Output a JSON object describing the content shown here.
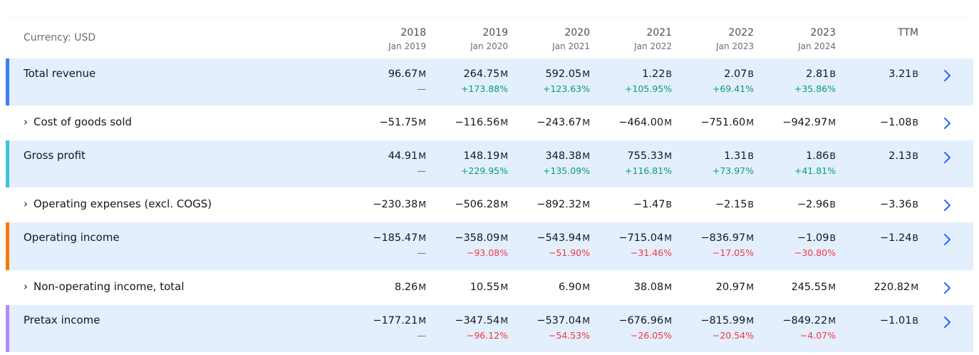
{
  "colors": {
    "band": "#e3effd",
    "positive": "#089981",
    "negative": "#f23645",
    "chevron": "#2962ff",
    "accent_total_revenue": "#3b82f6",
    "accent_gross_profit": "#40c4d8",
    "accent_operating_income": "#f57c00",
    "accent_pretax_income": "#b388ff"
  },
  "header": {
    "currency": "Currency: USD",
    "columns": [
      {
        "year": "2018",
        "period": "Jan 2019"
      },
      {
        "year": "2019",
        "period": "Jan 2020"
      },
      {
        "year": "2020",
        "period": "Jan 2021"
      },
      {
        "year": "2021",
        "period": "Jan 2022"
      },
      {
        "year": "2022",
        "period": "Jan 2023"
      },
      {
        "year": "2023",
        "period": "Jan 2024"
      },
      {
        "year": "TTM",
        "period": ""
      }
    ]
  },
  "rows": [
    {
      "label": "Total revenue",
      "expandable": false,
      "accent": "accent_total_revenue",
      "values": [
        {
          "num": "96.67",
          "unit": "M",
          "change": "—"
        },
        {
          "num": "264.75",
          "unit": "M",
          "change": "+173.88%"
        },
        {
          "num": "592.05",
          "unit": "M",
          "change": "+123.63%"
        },
        {
          "num": "1.22",
          "unit": "B",
          "change": "+105.95%"
        },
        {
          "num": "2.07",
          "unit": "B",
          "change": "+69.41%"
        },
        {
          "num": "2.81",
          "unit": "B",
          "change": "+35.86%"
        },
        {
          "num": "3.21",
          "unit": "B",
          "change": ""
        }
      ]
    },
    {
      "label": "Cost of goods sold",
      "expandable": true,
      "accent": "",
      "values": [
        {
          "num": "−51.75",
          "unit": "M",
          "change": ""
        },
        {
          "num": "−116.56",
          "unit": "M",
          "change": ""
        },
        {
          "num": "−243.67",
          "unit": "M",
          "change": ""
        },
        {
          "num": "−464.00",
          "unit": "M",
          "change": ""
        },
        {
          "num": "−751.60",
          "unit": "M",
          "change": ""
        },
        {
          "num": "−942.97",
          "unit": "M",
          "change": ""
        },
        {
          "num": "−1.08",
          "unit": "B",
          "change": ""
        }
      ]
    },
    {
      "label": "Gross profit",
      "expandable": false,
      "accent": "accent_gross_profit",
      "values": [
        {
          "num": "44.91",
          "unit": "M",
          "change": "—"
        },
        {
          "num": "148.19",
          "unit": "M",
          "change": "+229.95%"
        },
        {
          "num": "348.38",
          "unit": "M",
          "change": "+135.09%"
        },
        {
          "num": "755.33",
          "unit": "M",
          "change": "+116.81%"
        },
        {
          "num": "1.31",
          "unit": "B",
          "change": "+73.97%"
        },
        {
          "num": "1.86",
          "unit": "B",
          "change": "+41.81%"
        },
        {
          "num": "2.13",
          "unit": "B",
          "change": ""
        }
      ]
    },
    {
      "label": "Operating expenses (excl. COGS)",
      "expandable": true,
      "accent": "",
      "values": [
        {
          "num": "−230.38",
          "unit": "M",
          "change": ""
        },
        {
          "num": "−506.28",
          "unit": "M",
          "change": ""
        },
        {
          "num": "−892.32",
          "unit": "M",
          "change": ""
        },
        {
          "num": "−1.47",
          "unit": "B",
          "change": ""
        },
        {
          "num": "−2.15",
          "unit": "B",
          "change": ""
        },
        {
          "num": "−2.96",
          "unit": "B",
          "change": ""
        },
        {
          "num": "−3.36",
          "unit": "B",
          "change": ""
        }
      ]
    },
    {
      "label": "Operating income",
      "expandable": false,
      "accent": "accent_operating_income",
      "values": [
        {
          "num": "−185.47",
          "unit": "M",
          "change": "—"
        },
        {
          "num": "−358.09",
          "unit": "M",
          "change": "−93.08%"
        },
        {
          "num": "−543.94",
          "unit": "M",
          "change": "−51.90%"
        },
        {
          "num": "−715.04",
          "unit": "M",
          "change": "−31.46%"
        },
        {
          "num": "−836.97",
          "unit": "M",
          "change": "−17.05%"
        },
        {
          "num": "−1.09",
          "unit": "B",
          "change": "−30.80%"
        },
        {
          "num": "−1.24",
          "unit": "B",
          "change": ""
        }
      ]
    },
    {
      "label": "Non-operating income, total",
      "expandable": true,
      "accent": "",
      "values": [
        {
          "num": "8.26",
          "unit": "M",
          "change": ""
        },
        {
          "num": "10.55",
          "unit": "M",
          "change": ""
        },
        {
          "num": "6.90",
          "unit": "M",
          "change": ""
        },
        {
          "num": "38.08",
          "unit": "M",
          "change": ""
        },
        {
          "num": "20.97",
          "unit": "M",
          "change": ""
        },
        {
          "num": "245.55",
          "unit": "M",
          "change": ""
        },
        {
          "num": "220.82",
          "unit": "M",
          "change": ""
        }
      ]
    },
    {
      "label": "Pretax income",
      "expandable": false,
      "accent": "accent_pretax_income",
      "values": [
        {
          "num": "−177.21",
          "unit": "M",
          "change": "—"
        },
        {
          "num": "−347.54",
          "unit": "M",
          "change": "−96.12%"
        },
        {
          "num": "−537.04",
          "unit": "M",
          "change": "−54.53%"
        },
        {
          "num": "−676.96",
          "unit": "M",
          "change": "−26.05%"
        },
        {
          "num": "−815.99",
          "unit": "M",
          "change": "−20.54%"
        },
        {
          "num": "−849.22",
          "unit": "M",
          "change": "−4.07%"
        },
        {
          "num": "−1.01",
          "unit": "B",
          "change": ""
        }
      ]
    }
  ]
}
